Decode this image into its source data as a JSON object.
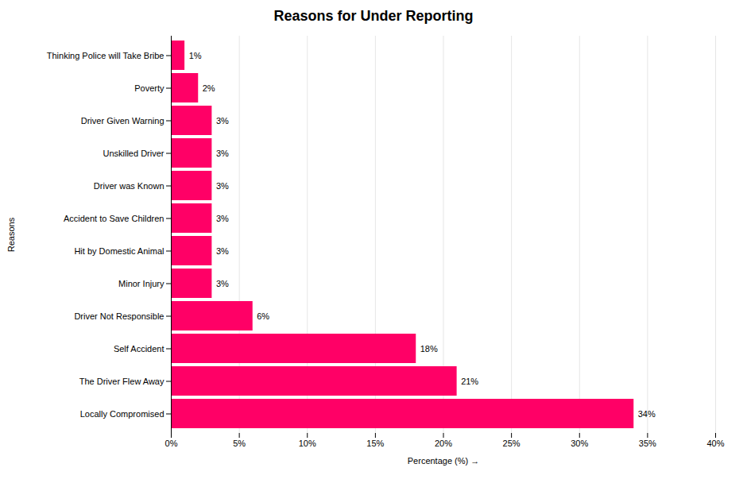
{
  "chart_data": {
    "type": "bar",
    "orientation": "horizontal",
    "title": "Reasons for Under Reporting",
    "categories": [
      "Locally Compromised",
      "The Driver Flew Away",
      "Self Accident",
      "Driver Not Responsible",
      "Minor Injury",
      "Hit by Domestic Animal",
      "Accident to Save Children",
      "Driver was Known",
      "Unskilled Driver",
      "Driver Given Warning",
      "Poverty",
      "Thinking Police will Take Bribe"
    ],
    "values": [
      34,
      21,
      18,
      6,
      3,
      3,
      3,
      3,
      3,
      3,
      2,
      1
    ],
    "value_labels": [
      "34%",
      "21%",
      "18%",
      "6%",
      "3%",
      "3%",
      "3%",
      "3%",
      "3%",
      "3%",
      "2%",
      "1%"
    ],
    "data_labels": true,
    "color": "#FF0066",
    "xlabel": "Percentage (%)",
    "ylabel": "Reasons",
    "xlim": [
      0,
      40
    ],
    "xticks": [
      {
        "value": 0,
        "label": "0%"
      },
      {
        "value": 5,
        "label": "5%"
      },
      {
        "value": 10,
        "label": "10%"
      },
      {
        "value": 15,
        "label": "15%"
      },
      {
        "value": 20,
        "label": "20%"
      },
      {
        "value": 25,
        "label": "25%"
      },
      {
        "value": 30,
        "label": "30%"
      },
      {
        "value": 35,
        "label": "35%"
      },
      {
        "value": 40,
        "label": "40%"
      }
    ],
    "grid": true
  }
}
